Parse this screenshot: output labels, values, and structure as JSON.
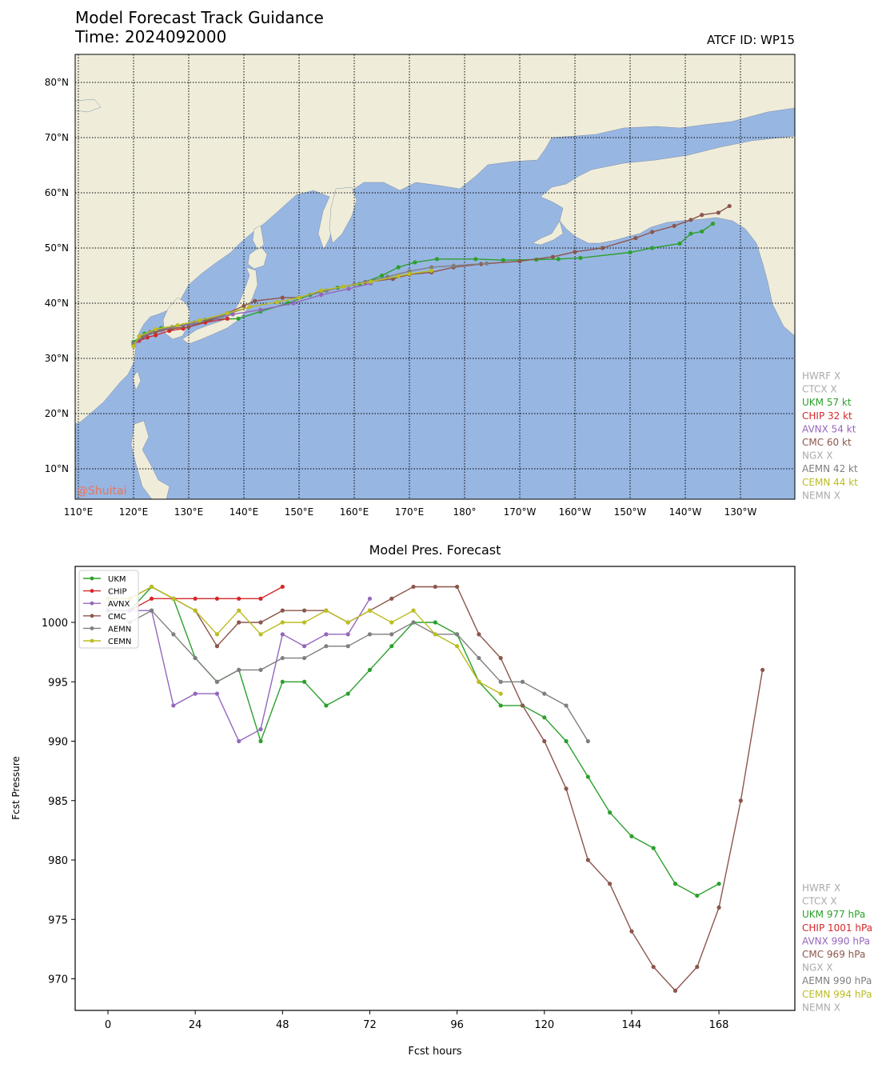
{
  "header": {
    "title": "Model Forecast Track Guidance",
    "time_label": "Time: 2024092000",
    "atcf_label": "ATCF ID: WP15"
  },
  "map": {
    "watermark": "@Shuitai",
    "colors": {
      "ocean": "#98b6e2",
      "land": "#efedda",
      "grid": "#000000",
      "watermark": "#e8745a"
    },
    "lon_labels": [
      "110°E",
      "120°E",
      "130°E",
      "140°E",
      "150°E",
      "160°E",
      "170°E",
      "180°",
      "170°W",
      "160°W",
      "150°W",
      "140°W",
      "130°W"
    ],
    "lat_labels": [
      "10°N",
      "20°N",
      "30°N",
      "40°N",
      "50°N",
      "60°N",
      "70°N",
      "80°N"
    ],
    "legend": [
      {
        "text": "HWRF X",
        "color": "#aaaaaa"
      },
      {
        "text": "CTCX X",
        "color": "#aaaaaa"
      },
      {
        "text": "UKM 57 kt",
        "color": "#2ca02c"
      },
      {
        "text": "CHIP 32 kt",
        "color": "#d62728"
      },
      {
        "text": "AVNX 54 kt",
        "color": "#9467bd"
      },
      {
        "text": "CMC 60 kt",
        "color": "#8c564b"
      },
      {
        "text": "NGX X",
        "color": "#aaaaaa"
      },
      {
        "text": "AEMN 42 kt",
        "color": "#7f7f7f"
      },
      {
        "text": "CEMN 44 kt",
        "color": "#bcbd22"
      },
      {
        "text": "NEMN X",
        "color": "#aaaaaa"
      }
    ],
    "tracks": [
      {
        "name": "UKM",
        "color": "#2ca02c",
        "points": [
          [
            120,
            33
          ],
          [
            122,
            34.5
          ],
          [
            125,
            35.5
          ],
          [
            129,
            36
          ],
          [
            133,
            37
          ],
          [
            139,
            37.2
          ],
          [
            143,
            38.5
          ],
          [
            148,
            40
          ],
          [
            152,
            41.5
          ],
          [
            157,
            42.8
          ],
          [
            161,
            43.5
          ],
          [
            165,
            45
          ],
          [
            168,
            46.5
          ],
          [
            171,
            47.4
          ],
          [
            175,
            48
          ],
          [
            182,
            48
          ],
          [
            187,
            47.8
          ],
          [
            193,
            47.9
          ],
          [
            197,
            48
          ],
          [
            201,
            48.2
          ],
          [
            210,
            49.2
          ],
          [
            214,
            50
          ],
          [
            219,
            50.8
          ],
          [
            221,
            52.6
          ],
          [
            223,
            53
          ],
          [
            225,
            54.4
          ]
        ]
      },
      {
        "name": "CHIP",
        "color": "#d62728",
        "points": [
          [
            120,
            32.5
          ],
          [
            121,
            33.2
          ],
          [
            122.5,
            33.8
          ],
          [
            124,
            34.2
          ],
          [
            126.5,
            35
          ],
          [
            129,
            35.4
          ],
          [
            133,
            36.5
          ],
          [
            137,
            37.2
          ]
        ]
      },
      {
        "name": "AVNX",
        "color": "#9467bd",
        "points": [
          [
            120,
            32.5
          ],
          [
            122,
            34
          ],
          [
            125,
            35.2
          ],
          [
            128,
            35.8
          ],
          [
            131,
            36.2
          ],
          [
            135,
            37.2
          ],
          [
            138,
            38
          ],
          [
            143,
            38.8
          ],
          [
            149,
            40
          ],
          [
            154,
            41.5
          ],
          [
            159,
            42.6
          ],
          [
            163,
            43.6
          ]
        ]
      },
      {
        "name": "CMC",
        "color": "#8c564b",
        "points": [
          [
            120,
            32.6
          ],
          [
            121.5,
            33.8
          ],
          [
            124,
            34.8
          ],
          [
            127,
            35.4
          ],
          [
            130,
            35.7
          ],
          [
            134,
            37
          ],
          [
            137,
            38.2
          ],
          [
            140,
            39.5
          ],
          [
            142,
            40.4
          ],
          [
            147,
            41
          ],
          [
            150,
            41
          ],
          [
            154,
            42.2
          ],
          [
            158,
            43
          ],
          [
            162,
            43.8
          ],
          [
            167,
            44.4
          ],
          [
            170,
            45.2
          ],
          [
            174,
            45.6
          ],
          [
            178,
            46.5
          ],
          [
            183,
            47.1
          ],
          [
            190,
            47.6
          ],
          [
            196,
            48.4
          ],
          [
            200,
            49.3
          ],
          [
            205,
            50
          ],
          [
            211,
            51.8
          ],
          [
            214,
            52.9
          ],
          [
            218,
            54
          ],
          [
            221,
            55.1
          ],
          [
            223,
            56
          ],
          [
            226,
            56.4
          ],
          [
            228,
            57.6
          ]
        ]
      },
      {
        "name": "AEMN",
        "color": "#7f7f7f",
        "points": [
          [
            120,
            32.8
          ],
          [
            123,
            34.8
          ],
          [
            127,
            35.7
          ],
          [
            131,
            36.5
          ],
          [
            136,
            37.7
          ],
          [
            141,
            39.3
          ],
          [
            146,
            40.2
          ],
          [
            150,
            41
          ],
          [
            155,
            42.3
          ],
          [
            160,
            43.4
          ],
          [
            166,
            44.8
          ],
          [
            170,
            45.8
          ],
          [
            174,
            46.5
          ],
          [
            178,
            46.8
          ],
          [
            184,
            47.2
          ]
        ]
      },
      {
        "name": "CEMN",
        "color": "#bcbd22",
        "points": [
          [
            120,
            32.2
          ],
          [
            121,
            34
          ],
          [
            124,
            35.3
          ],
          [
            128,
            36
          ],
          [
            132,
            36.9
          ],
          [
            137,
            38.2
          ],
          [
            141,
            39.3
          ],
          [
            146,
            40.2
          ],
          [
            150,
            41
          ],
          [
            154,
            42.3
          ],
          [
            158,
            43
          ],
          [
            163,
            43.9
          ],
          [
            168,
            44.9
          ],
          [
            170,
            45.3
          ],
          [
            174,
            45.9
          ]
        ]
      }
    ]
  },
  "pressure_chart": {
    "title": "Model Pres. Forecast",
    "xlabel": "Fcst hours",
    "ylabel": "Fcst Pressure",
    "xticks": [
      "0",
      "24",
      "48",
      "72",
      "96",
      "120",
      "144",
      "168"
    ],
    "yticks": [
      "970",
      "975",
      "980",
      "985",
      "990",
      "995",
      "1000"
    ],
    "legend_inner": [
      "UKM",
      "CHIP",
      "AVNX",
      "CMC",
      "AEMN",
      "CEMN"
    ],
    "legend_side": [
      {
        "text": "HWRF X",
        "color": "#aaaaaa"
      },
      {
        "text": "CTCX X",
        "color": "#aaaaaa"
      },
      {
        "text": "UKM 977 hPa",
        "color": "#2ca02c"
      },
      {
        "text": "CHIP 1001 hPa",
        "color": "#d62728"
      },
      {
        "text": "AVNX 990 hPa",
        "color": "#9467bd"
      },
      {
        "text": "CMC 969 hPa",
        "color": "#8c564b"
      },
      {
        "text": "NGX X",
        "color": "#aaaaaa"
      },
      {
        "text": "AEMN 990 hPa",
        "color": "#7f7f7f"
      },
      {
        "text": "CEMN 994 hPa",
        "color": "#bcbd22"
      },
      {
        "text": "NEMN X",
        "color": "#aaaaaa"
      }
    ]
  },
  "chart_data": {
    "type": "line",
    "title": "Model Pres. Forecast",
    "xlabel": "Fcst hours",
    "ylabel": "Fcst Pressure",
    "xlim": [
      -9,
      189
    ],
    "ylim": [
      967,
      1004.8
    ],
    "grid": false,
    "legend_placement": "top-left",
    "series": [
      {
        "name": "UKM",
        "color": "#2ca02c",
        "x": [
          0,
          6,
          12,
          18,
          24,
          30,
          36,
          42,
          48,
          54,
          60,
          66,
          72,
          78,
          84,
          90,
          96,
          102,
          108,
          114,
          120,
          126,
          132,
          138,
          144,
          150,
          156,
          162,
          168
        ],
        "values": [
          1001,
          1001,
          1003,
          1002,
          997,
          995,
          996,
          990,
          995,
          995,
          993,
          994,
          996,
          998,
          1000,
          1000,
          999,
          995,
          993,
          993,
          992,
          990,
          987,
          984,
          982,
          981,
          978,
          977,
          978
        ]
      },
      {
        "name": "CHIP",
        "color": "#d62728",
        "x": [
          0,
          6,
          12,
          18,
          24,
          30,
          36,
          42,
          48
        ],
        "values": [
          1001,
          1001,
          1002,
          1002,
          1002,
          1002,
          1002,
          1002,
          1003
        ]
      },
      {
        "name": "AVNX",
        "color": "#9467bd",
        "x": [
          0,
          6,
          12,
          18,
          24,
          30,
          36,
          42,
          48,
          54,
          60,
          66,
          72
        ],
        "values": [
          1001,
          1001,
          1001,
          993,
          994,
          994,
          990,
          991,
          999,
          998,
          999,
          999,
          1002
        ]
      },
      {
        "name": "CMC",
        "color": "#8c564b",
        "x": [
          0,
          6,
          12,
          18,
          24,
          30,
          36,
          42,
          48,
          54,
          60,
          66,
          72,
          78,
          84,
          90,
          96,
          102,
          108,
          114,
          120,
          126,
          132,
          138,
          144,
          150,
          156,
          162,
          168,
          174,
          180
        ],
        "values": [
          1002,
          1002,
          1003,
          1002,
          1001,
          998,
          1000,
          1000,
          1001,
          1001,
          1001,
          1000,
          1001,
          1002,
          1003,
          1003,
          1003,
          999,
          997,
          993,
          990,
          986,
          980,
          978,
          974,
          971,
          969,
          971,
          976,
          985,
          996
        ]
      },
      {
        "name": "AEMN",
        "color": "#7f7f7f",
        "x": [
          0,
          6,
          12,
          18,
          24,
          30,
          36,
          42,
          48,
          54,
          60,
          66,
          72,
          78,
          84,
          90,
          96,
          102,
          108,
          114,
          120,
          126,
          132
        ],
        "values": [
          1001,
          1000,
          1001,
          999,
          997,
          995,
          996,
          996,
          997,
          997,
          998,
          998,
          999,
          999,
          1000,
          999,
          999,
          997,
          995,
          995,
          994,
          993,
          990
        ]
      },
      {
        "name": "CEMN",
        "color": "#bcbd22",
        "x": [
          0,
          6,
          12,
          18,
          24,
          30,
          36,
          42,
          48,
          54,
          60,
          66,
          72,
          78,
          84,
          90,
          96,
          102,
          108
        ],
        "values": [
          1002,
          1002,
          1003,
          1002,
          1001,
          999,
          1001,
          999,
          1000,
          1000,
          1001,
          1000,
          1001,
          1000,
          1001,
          999,
          998,
          995,
          994
        ]
      }
    ]
  }
}
